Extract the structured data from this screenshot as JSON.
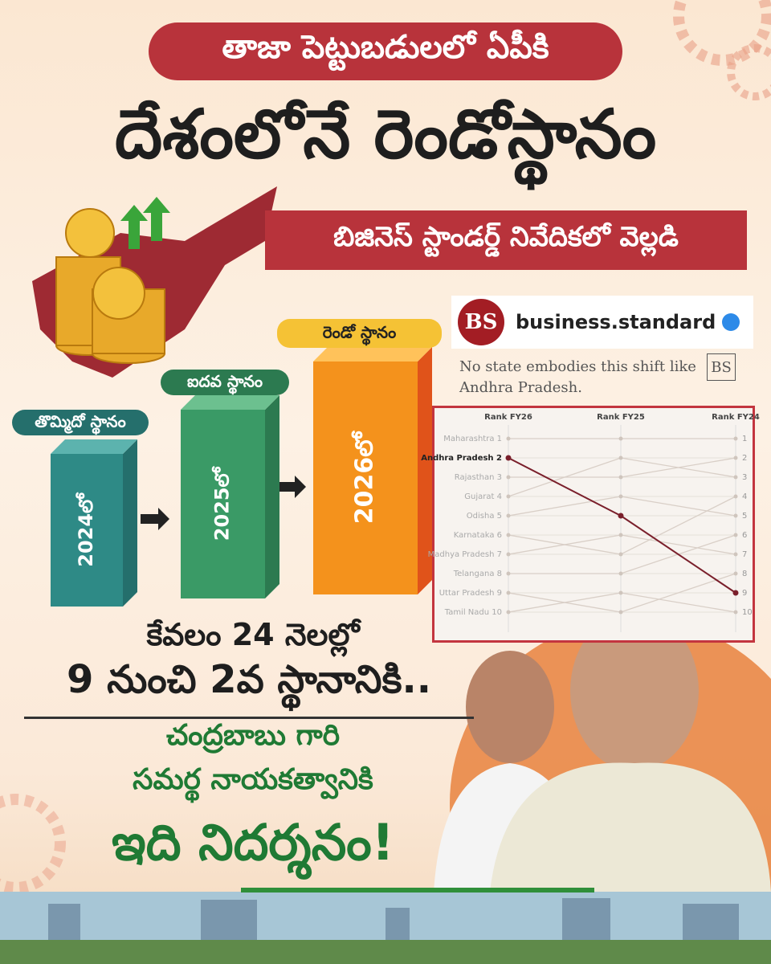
{
  "header": {
    "kicker": "తాజా పెట్టుబడులలో ఏపీకి",
    "title": "దేశంలోనే రెండోస్థానం",
    "subtitle": "బిజినెస్ స్టాండర్డ్ నివేదికలో వెల్లడి"
  },
  "bars": [
    {
      "label": "తొమ్మిదో స్థానం",
      "year": "2024లో"
    },
    {
      "label": "ఐదవ స్థానం",
      "year": "2025లో"
    },
    {
      "label": "రెండో స్థానం",
      "year": "2026లో"
    }
  ],
  "source": {
    "logo": "BS",
    "handle": "business.standard",
    "quote": "No state embodies this shift like Andhra Pradesh.",
    "badge": "BS"
  },
  "rank_chart": {
    "columns": [
      "Rank FY26",
      "Rank FY25",
      "Rank FY24"
    ],
    "ylim": [
      1,
      10
    ],
    "right_ticks": [
      1,
      2,
      3,
      4,
      5,
      6,
      7,
      8,
      9,
      10
    ],
    "highlight_state": "Andhra Pradesh 2",
    "highlight_color": "#7a1f2b",
    "states": [
      {
        "label": "Maharashtra 1",
        "ranks": [
          1,
          1,
          1
        ]
      },
      {
        "label": "Andhra Pradesh 2",
        "ranks": [
          2,
          5,
          9
        ]
      },
      {
        "label": "Rajasthan 3",
        "ranks": [
          3,
          3,
          2
        ]
      },
      {
        "label": "Gujarat 4",
        "ranks": [
          4,
          2,
          3
        ]
      },
      {
        "label": "Odisha 5",
        "ranks": [
          5,
          4,
          5
        ]
      },
      {
        "label": "Karnataka 6",
        "ranks": [
          6,
          7,
          4
        ]
      },
      {
        "label": "Madhya Pradesh 7",
        "ranks": [
          7,
          6,
          7
        ]
      },
      {
        "label": "Telangana 8",
        "ranks": [
          8,
          8,
          6
        ]
      },
      {
        "label": "Uttar Pradesh 9",
        "ranks": [
          9,
          10,
          8
        ]
      },
      {
        "label": "Tamil Nadu 10",
        "ranks": [
          10,
          9,
          10
        ]
      }
    ]
  },
  "footer": {
    "period": "కేవలం 24 నెలల్లో",
    "jump": "9 నుంచి 2వ స్థానానికి..",
    "line1": "చంద్రబాబు గారి",
    "line2": "సమర్థ నాయకత్వానికి",
    "line3": "ఇది నిదర్శనం!"
  }
}
